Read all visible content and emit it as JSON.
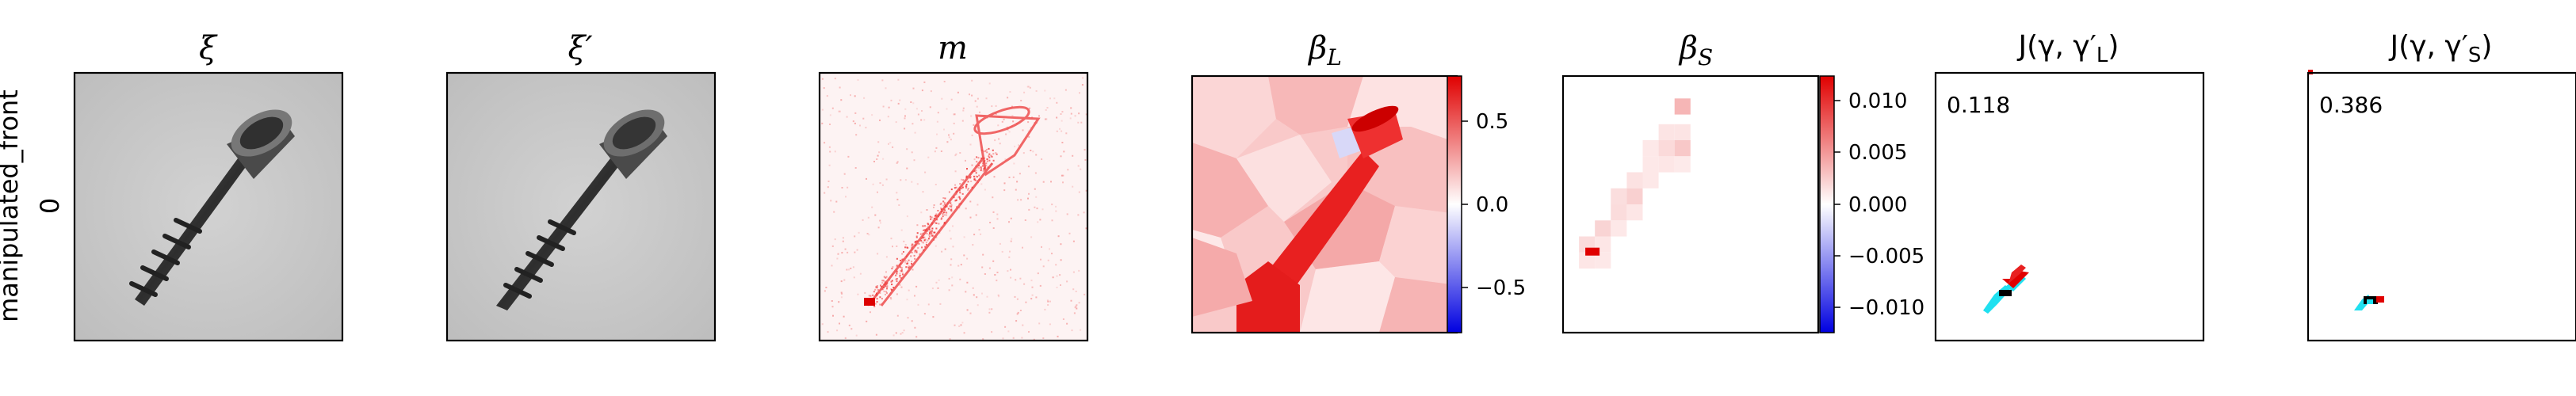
{
  "row": {
    "label_line1": "manipulated_front",
    "label_line2": "0"
  },
  "panels": {
    "xi": {
      "title": "ξ"
    },
    "xi_prime": {
      "title": "ξ′"
    },
    "m": {
      "title": "m"
    },
    "beta_l": {
      "title": "β",
      "subscript": "L",
      "colorbar_ticks": [
        "0.5",
        "0.0",
        "−0.5"
      ]
    },
    "beta_s": {
      "title": "β",
      "subscript": "S",
      "colorbar_ticks": [
        "0.010",
        "0.005",
        "0.000",
        "−0.005",
        "−0.010"
      ]
    },
    "j_l": {
      "title": "J(γ, γ′",
      "subscript": "L",
      "title_end": ")",
      "score": "0.118"
    },
    "j_s": {
      "title": "J(γ, γ′",
      "subscript": "S",
      "title_end": ")",
      "score": "0.386"
    }
  },
  "colors": {
    "photo_bg": "#c8c8c8",
    "screw_dark": "#3c3c3c",
    "heat_red": "#e00000",
    "heat_blue": "#0000e0",
    "cyan": "#20e0f0"
  }
}
